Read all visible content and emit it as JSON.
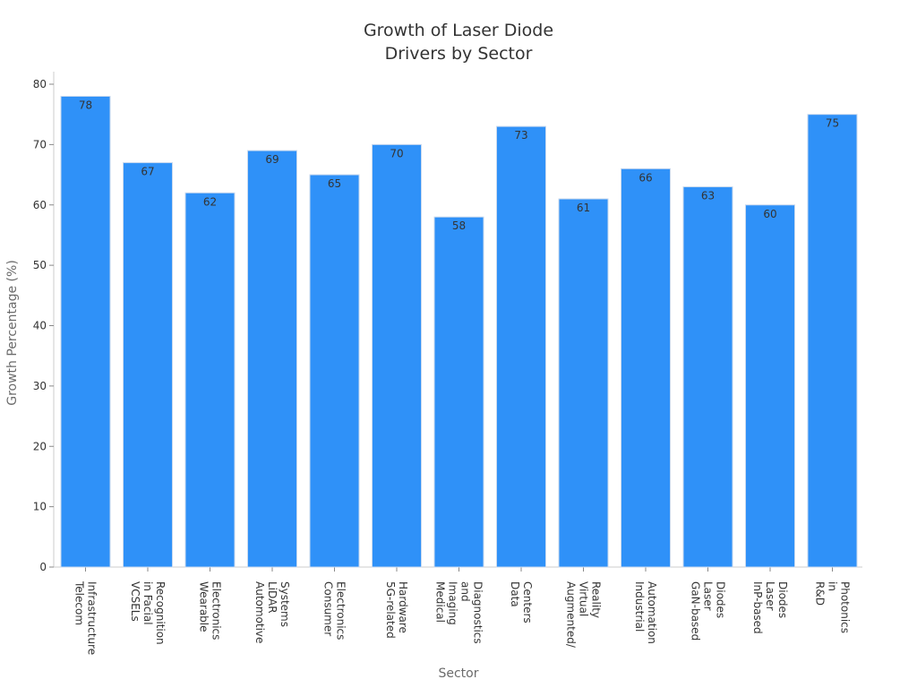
{
  "chart_data": {
    "type": "bar",
    "title": [
      "Growth of Laser Diode",
      "Drivers by Sector"
    ],
    "xlabel": "Sector",
    "ylabel": "Growth Percentage (%)",
    "ylim": [
      0,
      80
    ],
    "yticks": [
      0,
      10,
      20,
      30,
      40,
      50,
      60,
      70,
      80
    ],
    "bar_color": "#2f91f8",
    "categories": [
      [
        "Telecom",
        "Infrastructure"
      ],
      [
        "VCSELs",
        "in Facial",
        "Recognition"
      ],
      [
        "Wearable",
        "Electronics"
      ],
      [
        "Automotive",
        "LiDAR",
        "Systems"
      ],
      [
        "Consumer",
        "Electronics"
      ],
      [
        "5G-related",
        "Hardware"
      ],
      [
        "Medical",
        "Imaging",
        "and",
        "Diagnostics"
      ],
      [
        "Data",
        "Centers"
      ],
      [
        "Augmented/",
        "Virtual",
        "Reality"
      ],
      [
        "Industrial",
        "Automation"
      ],
      [
        "GaN-based",
        "Laser",
        "Diodes"
      ],
      [
        "InP-based",
        "Laser",
        "Diodes"
      ],
      [
        "R&D",
        "in",
        "Photonics"
      ]
    ],
    "values": [
      78,
      67,
      62,
      69,
      65,
      70,
      58,
      73,
      61,
      66,
      63,
      60,
      75
    ],
    "grid": false,
    "legend": "none"
  }
}
